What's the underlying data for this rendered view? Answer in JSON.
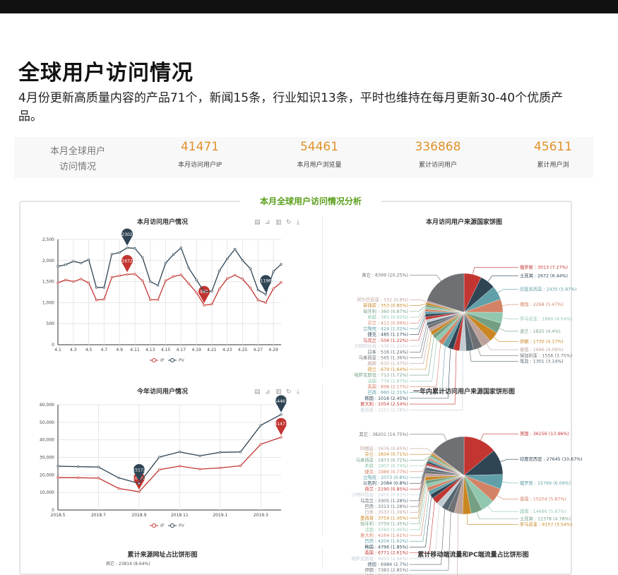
{
  "header": {
    "title": "全球用户访问情况",
    "subtitle": "4月份更新高质量内容的产品71个，新闻15条，行业知识13条，平时也维持在每月更新30-40个优质产品。"
  },
  "stats": {
    "label_line1": "本月全球用户",
    "label_line2": "访问情况",
    "items": [
      {
        "value": "41471",
        "label": "本月访问用户IP"
      },
      {
        "value": "54461",
        "label": "本月用户浏览量"
      },
      {
        "value": "336868",
        "label": "累计访问用户"
      },
      {
        "value": "45611",
        "label": "累计用户浏"
      }
    ]
  },
  "section_title": "本月全球用户访问情况分析",
  "colors": {
    "ip": "#c23531",
    "pv": "#2f4554",
    "accent": "#e0922a",
    "section": "#5a9e1a",
    "palette": [
      "#c23531",
      "#2f4554",
      "#61a0a8",
      "#d48265",
      "#91c7ae",
      "#749f83",
      "#ca8622",
      "#bda29a",
      "#6e7074",
      "#546570",
      "#c4ccd3"
    ]
  },
  "toolbox": [
    "data-view-icon",
    "line-switch-icon",
    "bar-switch-icon",
    "restore-icon",
    "download-icon"
  ],
  "chart_data": [
    {
      "type": "line",
      "title": "本月访问用户情况",
      "ylim": [
        0,
        2500
      ],
      "yticks": [
        "0",
        "500",
        "1,000",
        "1,500",
        "2,000",
        "2,500"
      ],
      "categories": [
        "4.1",
        "4.2",
        "4.3",
        "4.4",
        "4.5",
        "4.6",
        "4.7",
        "4.8",
        "4.9",
        "4.10",
        "4.11",
        "4.12",
        "4.13",
        "4.14",
        "4.15",
        "4.16",
        "4.17",
        "4.18",
        "4.19",
        "4.20",
        "4.21",
        "4.22",
        "4.23",
        "4.24",
        "4.25",
        "4.26",
        "4.27",
        "4.28",
        "4.29",
        "4.30"
      ],
      "series": [
        {
          "name": "IP",
          "values": [
            1470,
            1540,
            1500,
            1560,
            1470,
            1060,
            1080,
            1600,
            1640,
            1672,
            1680,
            1520,
            1070,
            1070,
            1520,
            1620,
            1660,
            1450,
            1240,
            938,
            960,
            1330,
            1570,
            1650,
            1560,
            1350,
            1060,
            1000,
            1330,
            1480
          ],
          "markers": [
            "1672",
            "938"
          ]
        },
        {
          "name": "PV",
          "values": [
            1860,
            1900,
            1980,
            1940,
            2020,
            1360,
            1360,
            2150,
            2190,
            2302,
            2290,
            2070,
            1500,
            1410,
            1940,
            2140,
            2300,
            1820,
            1540,
            1260,
            1270,
            1760,
            2040,
            2270,
            2000,
            1810,
            1300,
            1196,
            1740,
            1910
          ],
          "markers": [
            "2302",
            "1196"
          ]
        }
      ],
      "legend": "bottom"
    },
    {
      "type": "line",
      "title": "今年访问用户情况",
      "ylim": [
        0,
        60000
      ],
      "yticks": [
        "0",
        "10,000",
        "20,000",
        "30,000",
        "40,000",
        "50,000",
        "60,000"
      ],
      "categories": [
        "2018.5",
        "2018.6",
        "2018.7",
        "2018.8",
        "2018.9",
        "2018.10",
        "2018.11",
        "2018.12",
        "2019.1",
        "2019.2",
        "2019.3",
        "2019.4"
      ],
      "series": [
        {
          "name": "IP",
          "values": [
            18500,
            18400,
            18200,
            12300,
            10400,
            23000,
            25000,
            23300,
            24000,
            25200,
            37500,
            41471
          ],
          "markers": [
            "10400",
            "41471"
          ]
        },
        {
          "name": "PV",
          "values": [
            25000,
            24700,
            24500,
            18300,
            15172,
            30200,
            33100,
            30900,
            32900,
            33100,
            48300,
            54461
          ],
          "markers": [
            "15172",
            "54461"
          ]
        }
      ],
      "legend": "bottom"
    },
    {
      "type": "pie",
      "title": "本月访问用户来源国家饼图",
      "slices": [
        [
          "俄罗斯",
          3013,
          "7.27%"
        ],
        [
          "土耳其",
          2672,
          "6.44%"
        ],
        [
          "印度尼西亚",
          2435,
          "5.87%"
        ],
        [
          "德国",
          2268,
          "5.47%"
        ],
        [
          "罗马尼亚",
          1884,
          "4.54%"
        ],
        [
          "波兰",
          1825,
          "4.4%"
        ],
        [
          "伊朗",
          1730,
          "4.17%"
        ],
        [
          "泰国",
          1696,
          "4.09%"
        ],
        [
          "保加利亚",
          1556,
          "3.75%"
        ],
        [
          "埃及",
          1301,
          "3.14%"
        ],
        [
          "墨西哥",
          1151,
          "2.78%"
        ],
        [
          "意大利",
          1054,
          "2.54%"
        ],
        [
          "韩国",
          1016,
          "2.45%"
        ],
        [
          "巴西",
          960,
          "2.31%"
        ],
        [
          "英国",
          898,
          "2.17%"
        ],
        [
          "法国",
          774,
          "1.87%"
        ],
        [
          "哈萨克斯坦",
          713,
          "1.72%"
        ],
        [
          "荷兰",
          679,
          "1.64%"
        ],
        [
          "越南",
          610,
          "1.47%"
        ],
        [
          "马来西亚",
          565,
          "1.36%"
        ],
        [
          "日本",
          516,
          "1.24%"
        ],
        [
          "沙特阿拉伯",
          506,
          "1.22%"
        ],
        [
          "乌克兰",
          504,
          "1.22%"
        ],
        [
          "捷克",
          485,
          "1.17%"
        ],
        [
          "立陶宛",
          424,
          "1.02%"
        ],
        [
          "芬兰",
          411,
          "0.99%"
        ],
        [
          "希腊",
          381,
          "0.92%"
        ],
        [
          "匈牙利",
          360,
          "0.87%"
        ],
        [
          "菲律宾",
          353,
          "0.85%"
        ],
        [
          "阿尔巴尼亚",
          332,
          "0.8%"
        ],
        [
          "其它",
          8399,
          "20.25%"
        ]
      ]
    },
    {
      "type": "pie",
      "title": "一年内累计访问用户来源国家饼形图",
      "slices": [
        [
          "美国",
          36156,
          "13.96%"
        ],
        [
          "印度尼西亚",
          27645,
          "10.67%"
        ],
        [
          "俄罗斯",
          15769,
          "6.09%"
        ],
        [
          "泰国",
          15204,
          "5.87%"
        ],
        [
          "越南",
          14686,
          "5.67%"
        ],
        [
          "土耳其",
          12378,
          "4.78%"
        ],
        [
          "罗马尼亚",
          9157,
          "3.54%"
        ],
        [
          "波兰",
          9143,
          "3.53%"
        ],
        [
          "伊朗",
          7383,
          "2.85%"
        ],
        [
          "德国",
          6984,
          "2.7%"
        ],
        [
          "哈萨克斯坦",
          6910,
          "2.66%"
        ],
        [
          "英国",
          6771,
          "2.61%"
        ],
        [
          "韩国",
          4796,
          "1.85%"
        ],
        [
          "巴西",
          4204,
          "1.62%"
        ],
        [
          "意大利",
          4164,
          "1.61%"
        ],
        [
          "法国",
          3760,
          "1.45%"
        ],
        [
          "匈牙利",
          3759,
          "1.45%"
        ],
        [
          "墨西哥",
          3754,
          "1.45%"
        ],
        [
          "日本",
          3533,
          "1.36%"
        ],
        [
          "巴西",
          3313,
          "1.28%"
        ],
        [
          "乌克兰",
          3305,
          "1.28%"
        ],
        [
          "沙特阿拉伯",
          2402,
          "0.93%"
        ],
        [
          "荷兰",
          2190,
          "0.85%"
        ],
        [
          "以色列",
          2084,
          "0.8%"
        ],
        [
          "立陶宛",
          2073,
          "0.8%"
        ],
        [
          "捷克",
          1986,
          "0.77%"
        ],
        [
          "希腊",
          1907,
          "0.74%"
        ],
        [
          "马来西亚",
          1873,
          "0.72%"
        ],
        [
          "芬兰",
          1834,
          "0.71%"
        ],
        [
          "阿根廷",
          1676,
          "0.65%"
        ],
        [
          "其它",
          38201,
          "14.75%"
        ]
      ]
    }
  ],
  "bottom": {
    "left_title": "累计来源网址占比饼形图",
    "right_title": "累计移动端流量和PC端流量占比饼形图",
    "left_first_label": "其它 : 23814 (8.64%)"
  }
}
